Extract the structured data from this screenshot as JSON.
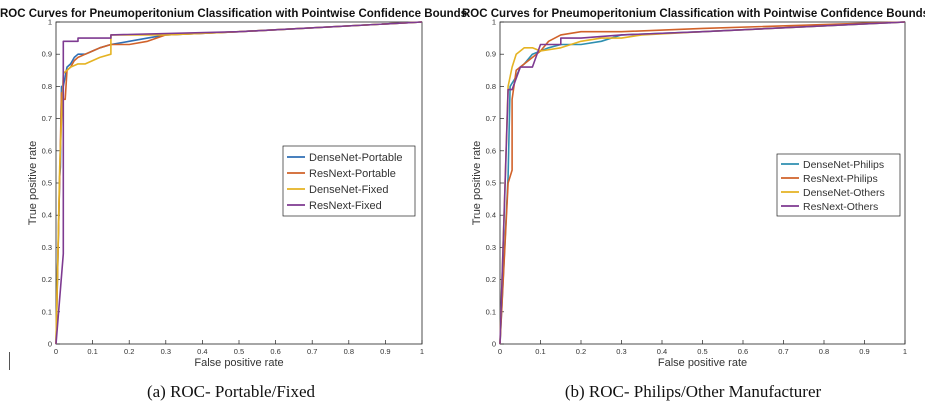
{
  "chart_data": [
    {
      "type": "line",
      "title": "ROC Curves for Pneumoperitonium Classification with Pointwise Confidence Bounds",
      "caption": "(a) ROC- Portable/Fixed",
      "xlabel": "False positive rate",
      "ylabel": "True positive rate",
      "xlim": [
        0,
        1
      ],
      "ylim": [
        0,
        1
      ],
      "xticks": [
        "0",
        "0.1",
        "0.2",
        "0.3",
        "0.4",
        "0.5",
        "0.6",
        "0.7",
        "0.8",
        "0.9",
        "1"
      ],
      "yticks": [
        "0",
        "0.1",
        "0.2",
        "0.3",
        "0.4",
        "0.5",
        "0.6",
        "0.7",
        "0.8",
        "0.9",
        "1"
      ],
      "grid": false,
      "legend_position": "right",
      "series": [
        {
          "name": "DenseNet-Portable",
          "color": "#2f6fb5",
          "x": [
            0,
            0.01,
            0.012,
            0.015,
            0.02,
            0.03,
            0.04,
            0.05,
            0.06,
            0.08,
            0.1,
            0.12,
            0.15,
            0.2,
            0.25,
            0.3,
            0.5,
            1
          ],
          "y": [
            0,
            0.52,
            0.55,
            0.8,
            0.8,
            0.86,
            0.87,
            0.89,
            0.9,
            0.9,
            0.91,
            0.92,
            0.93,
            0.94,
            0.95,
            0.96,
            0.97,
            1
          ]
        },
        {
          "name": "ResNext-Portable",
          "color": "#d1622a",
          "x": [
            0,
            0.01,
            0.015,
            0.02,
            0.025,
            0.03,
            0.04,
            0.05,
            0.06,
            0.08,
            0.1,
            0.12,
            0.15,
            0.2,
            0.25,
            0.3,
            0.5,
            1
          ],
          "y": [
            0,
            0.52,
            0.78,
            0.76,
            0.76,
            0.85,
            0.86,
            0.88,
            0.89,
            0.9,
            0.91,
            0.92,
            0.93,
            0.93,
            0.94,
            0.96,
            0.97,
            1
          ]
        },
        {
          "name": "DenseNet-Fixed",
          "color": "#e5b323",
          "x": [
            0,
            0.01,
            0.02,
            0.02,
            0.04,
            0.06,
            0.08,
            0.1,
            0.12,
            0.15,
            0.15,
            0.2,
            0.3,
            0.5,
            1
          ],
          "y": [
            0,
            0.55,
            0.84,
            0.84,
            0.86,
            0.87,
            0.87,
            0.88,
            0.89,
            0.9,
            0.96,
            0.96,
            0.96,
            0.97,
            1
          ]
        },
        {
          "name": "ResNext-Fixed",
          "color": "#7e3a91",
          "x": [
            0,
            0.02,
            0.02,
            0.06,
            0.06,
            0.15,
            0.15,
            0.5,
            1
          ],
          "y": [
            0,
            0.28,
            0.94,
            0.94,
            0.95,
            0.95,
            0.96,
            0.97,
            1
          ]
        }
      ]
    },
    {
      "type": "line",
      "title": "ROC Curves for Pneumoperitonium Classification with Pointwise Confidence Bounds",
      "caption": "(b) ROC- Philips/Other Manufacturer",
      "xlabel": "False positive rate",
      "ylabel": "True positive rate",
      "xlim": [
        0,
        1
      ],
      "ylim": [
        0,
        1
      ],
      "xticks": [
        "0",
        "0.1",
        "0.2",
        "0.3",
        "0.4",
        "0.5",
        "0.6",
        "0.7",
        "0.8",
        "0.9",
        "1"
      ],
      "yticks": [
        "0",
        "0.1",
        "0.2",
        "0.3",
        "0.4",
        "0.5",
        "0.6",
        "0.7",
        "0.8",
        "0.9",
        "1"
      ],
      "grid": false,
      "legend_position": "right",
      "series": [
        {
          "name": "DenseNet-Philips",
          "color": "#2e8fb0",
          "x": [
            0,
            0.02,
            0.025,
            0.03,
            0.04,
            0.05,
            0.06,
            0.08,
            0.1,
            0.12,
            0.15,
            0.2,
            0.25,
            0.3,
            0.5,
            1
          ],
          "y": [
            0,
            0.52,
            0.8,
            0.81,
            0.83,
            0.86,
            0.87,
            0.9,
            0.91,
            0.92,
            0.93,
            0.93,
            0.94,
            0.96,
            0.97,
            1
          ]
        },
        {
          "name": "ResNext-Philips",
          "color": "#d1622a",
          "x": [
            0,
            0.02,
            0.03,
            0.03,
            0.04,
            0.06,
            0.1,
            0.12,
            0.15,
            0.2,
            0.3,
            0.5,
            1
          ],
          "y": [
            0,
            0.5,
            0.54,
            0.76,
            0.85,
            0.87,
            0.91,
            0.94,
            0.96,
            0.97,
            0.97,
            0.98,
            1
          ]
        },
        {
          "name": "DenseNet-Others",
          "color": "#e5b323",
          "x": [
            0,
            0.02,
            0.03,
            0.04,
            0.05,
            0.06,
            0.08,
            0.1,
            0.15,
            0.2,
            0.25,
            0.3,
            0.35,
            0.5,
            1
          ],
          "y": [
            0,
            0.8,
            0.86,
            0.9,
            0.91,
            0.92,
            0.92,
            0.91,
            0.92,
            0.94,
            0.95,
            0.95,
            0.96,
            0.97,
            1
          ]
        },
        {
          "name": "ResNext-Others",
          "color": "#7e3a91",
          "x": [
            0,
            0.02,
            0.03,
            0.05,
            0.08,
            0.1,
            0.15,
            0.15,
            0.2,
            0.3,
            0.5,
            1
          ],
          "y": [
            0,
            0.79,
            0.79,
            0.86,
            0.86,
            0.93,
            0.93,
            0.95,
            0.95,
            0.96,
            0.97,
            1
          ]
        }
      ]
    }
  ]
}
